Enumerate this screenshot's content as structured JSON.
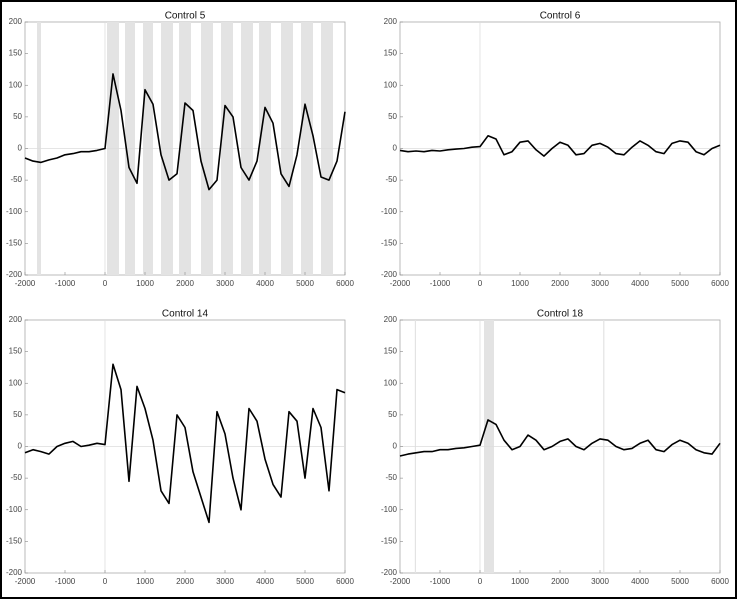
{
  "chart_data": [
    {
      "type": "line",
      "title": "Control 5",
      "color": "#000000",
      "x": [
        -2000,
        -1800,
        -1600,
        -1400,
        -1200,
        -1000,
        -800,
        -600,
        -400,
        -200,
        0,
        200,
        400,
        600,
        800,
        1000,
        1200,
        1400,
        1600,
        1800,
        2000,
        2200,
        2400,
        2600,
        2800,
        3000,
        3200,
        3400,
        3600,
        3800,
        4000,
        4200,
        4400,
        4600,
        4800,
        5000,
        5200,
        5400,
        5600,
        5800,
        6000
      ],
      "values": [
        -15,
        -20,
        -22,
        -18,
        -15,
        -10,
        -8,
        -5,
        -5,
        -3,
        0,
        118,
        60,
        -30,
        -55,
        93,
        70,
        -10,
        -50,
        -40,
        72,
        60,
        -20,
        -65,
        -50,
        68,
        50,
        -30,
        -50,
        -20,
        65,
        40,
        -40,
        -60,
        -10,
        70,
        20,
        -45,
        -50,
        -20,
        58
      ],
      "shaded": [
        [
          -1700,
          -1600
        ],
        [
          50,
          350
        ],
        [
          500,
          750
        ],
        [
          950,
          1200
        ],
        [
          1400,
          1700
        ],
        [
          1850,
          2150
        ],
        [
          2400,
          2700
        ],
        [
          2900,
          3200
        ],
        [
          3400,
          3700
        ],
        [
          3850,
          4150
        ],
        [
          4400,
          4700
        ],
        [
          4900,
          5200
        ],
        [
          5400,
          5700
        ]
      ],
      "xlim": [
        -2000,
        6000
      ],
      "xticks": [
        -2000,
        -1000,
        0,
        1000,
        2000,
        3000,
        4000,
        5000,
        6000
      ],
      "ylim": [
        -200,
        200
      ],
      "yticks": [
        -200,
        -150,
        -100,
        -50,
        0,
        50,
        100,
        150,
        200
      ]
    },
    {
      "type": "line",
      "title": "Control 6",
      "color": "#000000",
      "x": [
        -2000,
        -1800,
        -1600,
        -1400,
        -1200,
        -1000,
        -800,
        -600,
        -400,
        -200,
        0,
        200,
        400,
        600,
        800,
        1000,
        1200,
        1400,
        1600,
        1800,
        2000,
        2200,
        2400,
        2600,
        2800,
        3000,
        3200,
        3400,
        3600,
        3800,
        4000,
        4200,
        4400,
        4600,
        4800,
        5000,
        5200,
        5400,
        5600,
        5800,
        6000
      ],
      "values": [
        -3,
        -5,
        -4,
        -5,
        -3,
        -4,
        -2,
        -1,
        0,
        2,
        3,
        20,
        15,
        -10,
        -5,
        10,
        12,
        -2,
        -12,
        0,
        10,
        5,
        -10,
        -8,
        5,
        8,
        2,
        -8,
        -10,
        2,
        12,
        5,
        -5,
        -8,
        8,
        12,
        10,
        -5,
        -10,
        0,
        5
      ],
      "shaded": [],
      "xlim": [
        -2000,
        6000
      ],
      "xticks": [
        -2000,
        -1000,
        0,
        1000,
        2000,
        3000,
        4000,
        5000,
        6000
      ],
      "ylim": [
        -200,
        200
      ],
      "yticks": [
        -200,
        -150,
        -100,
        -50,
        0,
        50,
        100,
        150,
        200
      ]
    },
    {
      "type": "line",
      "title": "Control 14",
      "color": "#000000",
      "x": [
        -2000,
        -1800,
        -1600,
        -1400,
        -1200,
        -1000,
        -800,
        -600,
        -400,
        -200,
        0,
        200,
        400,
        600,
        800,
        1000,
        1200,
        1400,
        1600,
        1800,
        2000,
        2200,
        2400,
        2600,
        2800,
        3000,
        3200,
        3400,
        3600,
        3800,
        4000,
        4200,
        4400,
        4600,
        4800,
        5000,
        5200,
        5400,
        5600,
        5800,
        6000
      ],
      "values": [
        -10,
        -5,
        -8,
        -12,
        0,
        5,
        8,
        0,
        2,
        5,
        3,
        130,
        90,
        -55,
        95,
        60,
        10,
        -70,
        -90,
        50,
        30,
        -40,
        -80,
        -120,
        55,
        20,
        -50,
        -100,
        60,
        40,
        -20,
        -60,
        -80,
        55,
        40,
        -50,
        60,
        30,
        -70,
        90,
        85
      ],
      "shaded": [],
      "xlim": [
        -2000,
        6000
      ],
      "xticks": [
        -2000,
        -1000,
        0,
        1000,
        2000,
        3000,
        4000,
        5000,
        6000
      ],
      "ylim": [
        -200,
        200
      ],
      "yticks": [
        -200,
        -150,
        -100,
        -50,
        0,
        50,
        100,
        150,
        200
      ]
    },
    {
      "type": "line",
      "title": "Control 18",
      "color": "#000000",
      "x": [
        -2000,
        -1800,
        -1600,
        -1400,
        -1200,
        -1000,
        -800,
        -600,
        -400,
        -200,
        0,
        200,
        400,
        600,
        800,
        1000,
        1200,
        1400,
        1600,
        1800,
        2000,
        2200,
        2400,
        2600,
        2800,
        3000,
        3200,
        3400,
        3600,
        3800,
        4000,
        4200,
        4400,
        4600,
        4800,
        5000,
        5200,
        5400,
        5600,
        5800,
        6000
      ],
      "values": [
        -15,
        -12,
        -10,
        -8,
        -8,
        -5,
        -5,
        -3,
        -2,
        0,
        2,
        42,
        35,
        10,
        -5,
        0,
        18,
        10,
        -5,
        0,
        8,
        12,
        0,
        -5,
        5,
        12,
        10,
        0,
        -5,
        -3,
        5,
        10,
        -5,
        -8,
        3,
        10,
        5,
        -5,
        -10,
        -12,
        5
      ],
      "shaded": [
        [
          -1630,
          -1600
        ],
        [
          100,
          350
        ],
        [
          3080,
          3110
        ]
      ],
      "xlim": [
        -2000,
        6000
      ],
      "xticks": [
        -2000,
        -1000,
        0,
        1000,
        2000,
        3000,
        4000,
        5000,
        6000
      ],
      "ylim": [
        -200,
        200
      ],
      "yticks": [
        -200,
        -150,
        -100,
        -50,
        0,
        50,
        100,
        150,
        200
      ]
    }
  ]
}
